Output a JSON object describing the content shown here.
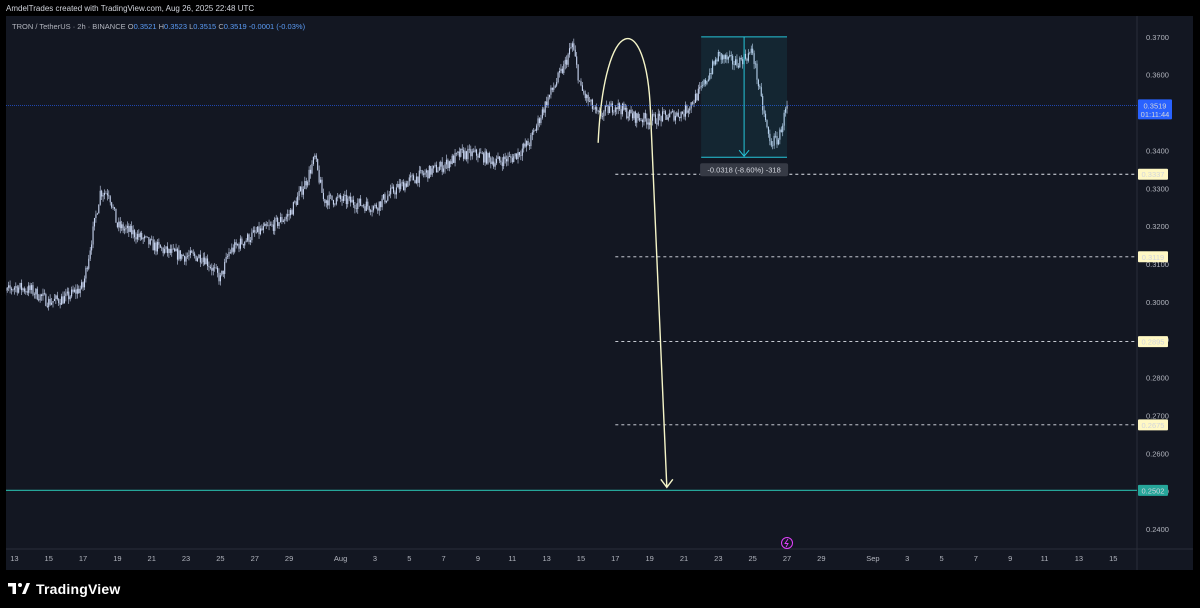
{
  "header": {
    "credit": "AmdelTrades created with TradingView.com, Aug 26, 2025 22:48 UTC"
  },
  "legend": {
    "symbol": "TRON / TetherUS · 2h · BINANCE",
    "open_label": "O",
    "open": "0.3521",
    "high_label": "H",
    "high": "0.3523",
    "low_label": "L",
    "low": "0.3515",
    "close_label": "C",
    "close": "0.3519",
    "change": "-0.0001 (-0.03%)"
  },
  "footer": {
    "brand": "TradingView",
    "logo_icon": "tradingview-logo-icon"
  },
  "colors": {
    "panel_bg": "#131722",
    "candles": "#c9d6f2",
    "axis_text": "#b2b5be",
    "price_label": "#2962ff",
    "target_line": "#26a69a",
    "measure": "#26c6da",
    "arrow": "#f5f5c8",
    "event_icon": "#e040fb"
  },
  "chart_data": {
    "type": "candlestick",
    "symbol": "TRON / TetherUS",
    "timeframe": "2h",
    "exchange": "BINANCE",
    "ylim": [
      0.2355,
      0.3755
    ],
    "y_ticks": [
      "0.3700",
      "0.3600",
      "0.3500",
      "0.3400",
      "0.3300",
      "0.3200",
      "0.3100",
      "0.3000",
      "0.2900",
      "0.2800",
      "0.2700",
      "0.2600",
      "0.2500",
      "0.2400"
    ],
    "x_ticks": [
      "13",
      "15",
      "17",
      "19",
      "21",
      "23",
      "25",
      "27",
      "29",
      "Aug",
      "3",
      "5",
      "7",
      "9",
      "11",
      "13",
      "15",
      "17",
      "19",
      "21",
      "23",
      "25",
      "27",
      "29",
      "Sep",
      "3",
      "5",
      "7",
      "9",
      "11",
      "13",
      "15"
    ],
    "x_tick_dates": [
      "2025-07-13",
      "2025-07-15",
      "2025-07-17",
      "2025-07-19",
      "2025-07-21",
      "2025-07-23",
      "2025-07-25",
      "2025-07-27",
      "2025-07-29",
      "2025-08-01",
      "2025-08-03",
      "2025-08-05",
      "2025-08-07",
      "2025-08-09",
      "2025-08-11",
      "2025-08-13",
      "2025-08-15",
      "2025-08-17",
      "2025-08-19",
      "2025-08-21",
      "2025-08-23",
      "2025-08-25",
      "2025-08-27",
      "2025-08-29",
      "2025-09-01",
      "2025-09-03",
      "2025-09-05",
      "2025-09-07",
      "2025-09-09",
      "2025-09-11",
      "2025-09-13",
      "2025-09-15"
    ],
    "price_path": [
      [
        "2025-07-12",
        0.301
      ],
      [
        "2025-07-13",
        0.304
      ],
      [
        "2025-07-14",
        0.303
      ],
      [
        "2025-07-15",
        0.3
      ],
      [
        "2025-07-16",
        0.301
      ],
      [
        "2025-07-17",
        0.304
      ],
      [
        "2025-07-18",
        0.329
      ],
      [
        "2025-07-18T12:00",
        0.329
      ],
      [
        "2025-07-19",
        0.32
      ],
      [
        "2025-07-20",
        0.318
      ],
      [
        "2025-07-21",
        0.315
      ],
      [
        "2025-07-22",
        0.313
      ],
      [
        "2025-07-23",
        0.312
      ],
      [
        "2025-07-24",
        0.312
      ],
      [
        "2025-07-25",
        0.306
      ],
      [
        "2025-07-25T12:00",
        0.313
      ],
      [
        "2025-07-26",
        0.315
      ],
      [
        "2025-07-27",
        0.318
      ],
      [
        "2025-07-28",
        0.32
      ],
      [
        "2025-07-29",
        0.323
      ],
      [
        "2025-07-30",
        0.332
      ],
      [
        "2025-07-30T12:00",
        0.338
      ],
      [
        "2025-07-31",
        0.327
      ],
      [
        "2025-08-01",
        0.327
      ],
      [
        "2025-08-02",
        0.326
      ],
      [
        "2025-08-03",
        0.325
      ],
      [
        "2025-08-04",
        0.329
      ],
      [
        "2025-08-05",
        0.332
      ],
      [
        "2025-08-06",
        0.334
      ],
      [
        "2025-08-07",
        0.336
      ],
      [
        "2025-08-08",
        0.339
      ],
      [
        "2025-08-09",
        0.339
      ],
      [
        "2025-08-10",
        0.337
      ],
      [
        "2025-08-11",
        0.338
      ],
      [
        "2025-08-12",
        0.342
      ],
      [
        "2025-08-13",
        0.353
      ],
      [
        "2025-08-14",
        0.362
      ],
      [
        "2025-08-14T12:00",
        0.368
      ],
      [
        "2025-08-15",
        0.356
      ],
      [
        "2025-08-16",
        0.349
      ],
      [
        "2025-08-17",
        0.352
      ],
      [
        "2025-08-18",
        0.349
      ],
      [
        "2025-08-19",
        0.348
      ],
      [
        "2025-08-20",
        0.349
      ],
      [
        "2025-08-21",
        0.35
      ],
      [
        "2025-08-22",
        0.356
      ],
      [
        "2025-08-23",
        0.365
      ],
      [
        "2025-08-24",
        0.363
      ],
      [
        "2025-08-25",
        0.366
      ],
      [
        "2025-08-25T12:00",
        0.353
      ],
      [
        "2025-08-26",
        0.342
      ],
      [
        "2025-08-26T12:00",
        0.343
      ],
      [
        "2025-08-27",
        0.3519
      ]
    ],
    "current_price": 0.3519,
    "current_price_label": "0.3519",
    "countdown": "01:11:44",
    "measure_box": {
      "from_date": "2025-08-22",
      "to_date": "2025-08-27",
      "high": 0.37,
      "low": 0.3382,
      "label": "-0.0318 (-8.60%) -318"
    },
    "levels": [
      {
        "value": 0.3337,
        "label": "0.3337",
        "style": "dashed"
      },
      {
        "value": 0.3119,
        "label": "0.3119",
        "style": "dashed"
      },
      {
        "value": 0.2895,
        "label": "0.2895",
        "style": "dashed"
      },
      {
        "value": 0.2675,
        "label": "0.2675",
        "style": "dashed"
      },
      {
        "value": 0.2502,
        "label": "0.2502",
        "style": "solid-target"
      }
    ],
    "projection_arrow": {
      "from": [
        "2025-08-16",
        0.342
      ],
      "peak": [
        "2025-08-18",
        0.374
      ],
      "to": [
        "2025-08-20",
        0.251
      ]
    },
    "event_marker": {
      "date": "2025-08-27",
      "icon": "lightning-icon"
    }
  }
}
